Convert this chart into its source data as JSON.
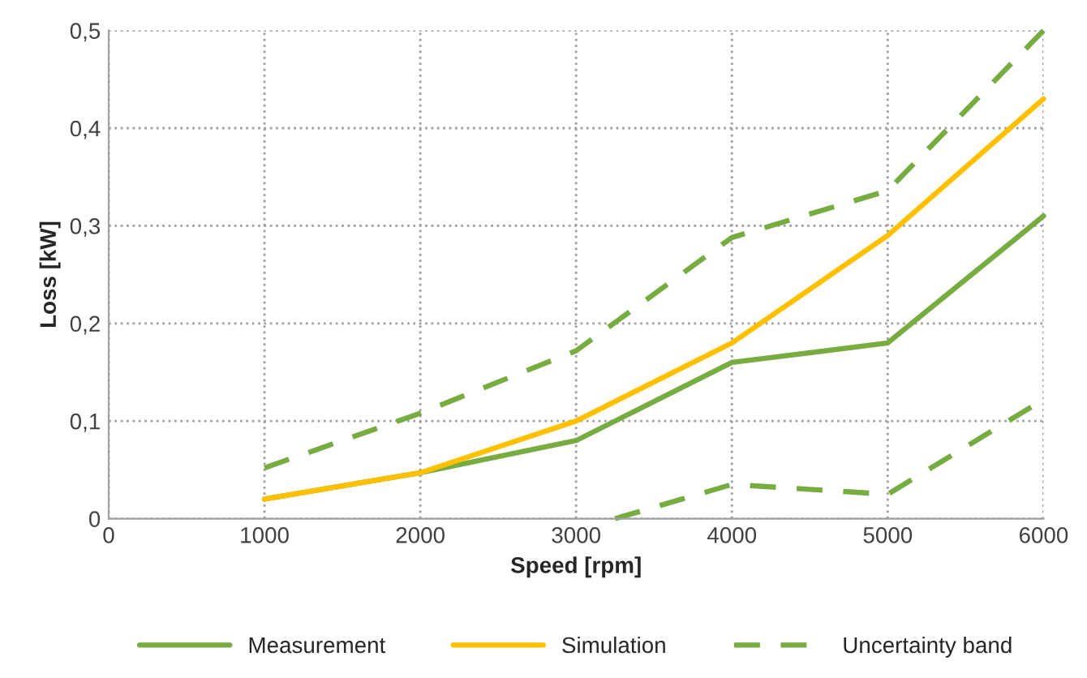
{
  "chart_data": {
    "type": "line",
    "xlabel": "Speed [rpm]",
    "ylabel": "Loss [kW]",
    "x": [
      1000,
      2000,
      3000,
      4000,
      5000,
      6000
    ],
    "xlim": [
      0,
      6000
    ],
    "xticks": [
      0,
      1000,
      2000,
      3000,
      4000,
      5000,
      6000
    ],
    "ylim": [
      0,
      0.5
    ],
    "yticks": [
      {
        "value": 0,
        "label": "0"
      },
      {
        "value": 0.1,
        "label": "0,1"
      },
      {
        "value": 0.2,
        "label": "0,2"
      },
      {
        "value": 0.3,
        "label": "0,3"
      },
      {
        "value": 0.4,
        "label": "0,4"
      },
      {
        "value": 0.5,
        "label": "0,5"
      }
    ],
    "grid": true,
    "legend": "bottom",
    "marker": "none",
    "series": [
      {
        "name": "Measurement",
        "color": "#77ac41",
        "line_style": "solid",
        "values": [
          0.02,
          0.047,
          0.08,
          0.16,
          0.18,
          0.31
        ]
      },
      {
        "name": "Simulation",
        "color": "#ffc000",
        "line_style": "solid",
        "values": [
          0.02,
          0.047,
          0.1,
          0.18,
          0.29,
          0.43
        ]
      },
      {
        "name": "Uncertainty band",
        "color": "#77ac41",
        "line_style": "dashed",
        "values": [
          0.052,
          0.108,
          0.172,
          0.288,
          0.336,
          0.5
        ]
      },
      {
        "color": "#77ac41",
        "line_style": "dashed",
        "x": [
          3250,
          4000,
          5000,
          6000
        ],
        "values": [
          0,
          0.035,
          0.025,
          0.122
        ]
      }
    ]
  }
}
